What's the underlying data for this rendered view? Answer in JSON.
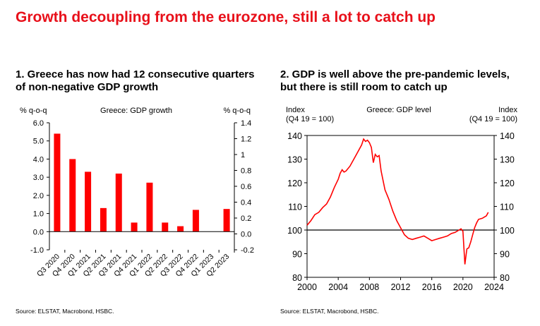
{
  "page": {
    "title": "Growth decoupling from the eurozone, still a lot to catch up"
  },
  "panels": [
    {
      "heading": "1. Greece has now had 12 consecutive quarters of non-negative GDP growth",
      "source": "Source: ELSTAT, Macrobond, HSBC."
    },
    {
      "heading": "2. GDP is well above the pre-pandemic levels, but there is still room to catch up",
      "source": "Source: ELSTAT, Macrobond, HSBC."
    }
  ],
  "chart_data": [
    {
      "type": "bar",
      "title": "Greece: GDP growth",
      "ylabel_left": "% q-o-q",
      "ylabel_right": "% q-o-q",
      "categories": [
        "Q3 2020",
        "Q4 2020",
        "Q1 2021",
        "Q2 2021",
        "Q3 2021",
        "Q4 2021",
        "Q1 2022",
        "Q2 2022",
        "Q3 2022",
        "Q4 2022",
        "Q1 2023",
        "Q2 2023"
      ],
      "series": [
        {
          "values": [
            5.4,
            4.0,
            3.3,
            1.3,
            3.2,
            0.5,
            2.7,
            0.5,
            0.3,
            1.2,
            0.0,
            1.25
          ]
        }
      ],
      "ylim_left": [
        -1.0,
        6.0
      ],
      "yticks_left": [
        "6.0",
        "5.0",
        "4.0",
        "3.0",
        "2.0",
        "1.0",
        "0.0",
        "-1.0"
      ],
      "ylim_right": [
        -0.2,
        1.4
      ],
      "yticks_right": [
        "1.4",
        "1.2",
        "1",
        "0.8",
        "0.6",
        "0.4",
        "0.2",
        "0.0",
        "-0.2"
      ],
      "bar_color": "#ff0000"
    },
    {
      "type": "line",
      "title": "Greece: GDP level",
      "ylabel_left": "Index\n(Q4 19 = 100)",
      "ylabel_right": "Index\n(Q4 19 = 100)",
      "ylim": [
        80,
        140
      ],
      "yticks": [
        "140",
        "130",
        "120",
        "110",
        "100",
        "90",
        "80"
      ],
      "xlim": [
        2000,
        2024
      ],
      "xticks": [
        "2000",
        "2004",
        "2008",
        "2012",
        "2016",
        "2020",
        "2024"
      ],
      "reference_line": 100,
      "series": [
        {
          "color": "#ff0000",
          "points": [
            [
              2000.0,
              102
            ],
            [
              2000.5,
              104
            ],
            [
              2001.0,
              106.5
            ],
            [
              2001.5,
              107.5
            ],
            [
              2002.0,
              109.5
            ],
            [
              2002.5,
              111
            ],
            [
              2003.0,
              114
            ],
            [
              2003.5,
              118
            ],
            [
              2004.0,
              121.5
            ],
            [
              2004.25,
              124
            ],
            [
              2004.5,
              125.5
            ],
            [
              2004.75,
              124.5
            ],
            [
              2005.0,
              125
            ],
            [
              2005.5,
              127
            ],
            [
              2006.0,
              130
            ],
            [
              2006.5,
              133
            ],
            [
              2007.0,
              136
            ],
            [
              2007.25,
              138.5
            ],
            [
              2007.5,
              137.5
            ],
            [
              2007.75,
              138
            ],
            [
              2008.0,
              137
            ],
            [
              2008.25,
              135
            ],
            [
              2008.5,
              128.5
            ],
            [
              2008.75,
              132
            ],
            [
              2009.0,
              131
            ],
            [
              2009.25,
              131.5
            ],
            [
              2009.5,
              125
            ],
            [
              2010.0,
              117
            ],
            [
              2010.5,
              113
            ],
            [
              2011.0,
              108
            ],
            [
              2011.5,
              104
            ],
            [
              2012.0,
              101
            ],
            [
              2012.5,
              98
            ],
            [
              2013.0,
              96.5
            ],
            [
              2013.5,
              96
            ],
            [
              2014.0,
              96.5
            ],
            [
              2014.5,
              97
            ],
            [
              2015.0,
              97.5
            ],
            [
              2015.5,
              96.5
            ],
            [
              2016.0,
              95.5
            ],
            [
              2016.5,
              96
            ],
            [
              2017.0,
              96.5
            ],
            [
              2017.5,
              97
            ],
            [
              2018.0,
              97.5
            ],
            [
              2018.5,
              98.5
            ],
            [
              2019.0,
              99
            ],
            [
              2019.5,
              100
            ],
            [
              2019.75,
              100.5
            ],
            [
              2020.0,
              99.5
            ],
            [
              2020.25,
              85.5
            ],
            [
              2020.5,
              92
            ],
            [
              2020.75,
              92.5
            ],
            [
              2021.0,
              95
            ],
            [
              2021.25,
              98
            ],
            [
              2021.5,
              101
            ],
            [
              2021.75,
              103
            ],
            [
              2022.0,
              104.5
            ],
            [
              2022.5,
              105
            ],
            [
              2022.75,
              105.5
            ],
            [
              2023.0,
              106
            ],
            [
              2023.25,
              107.5
            ]
          ]
        }
      ]
    }
  ]
}
